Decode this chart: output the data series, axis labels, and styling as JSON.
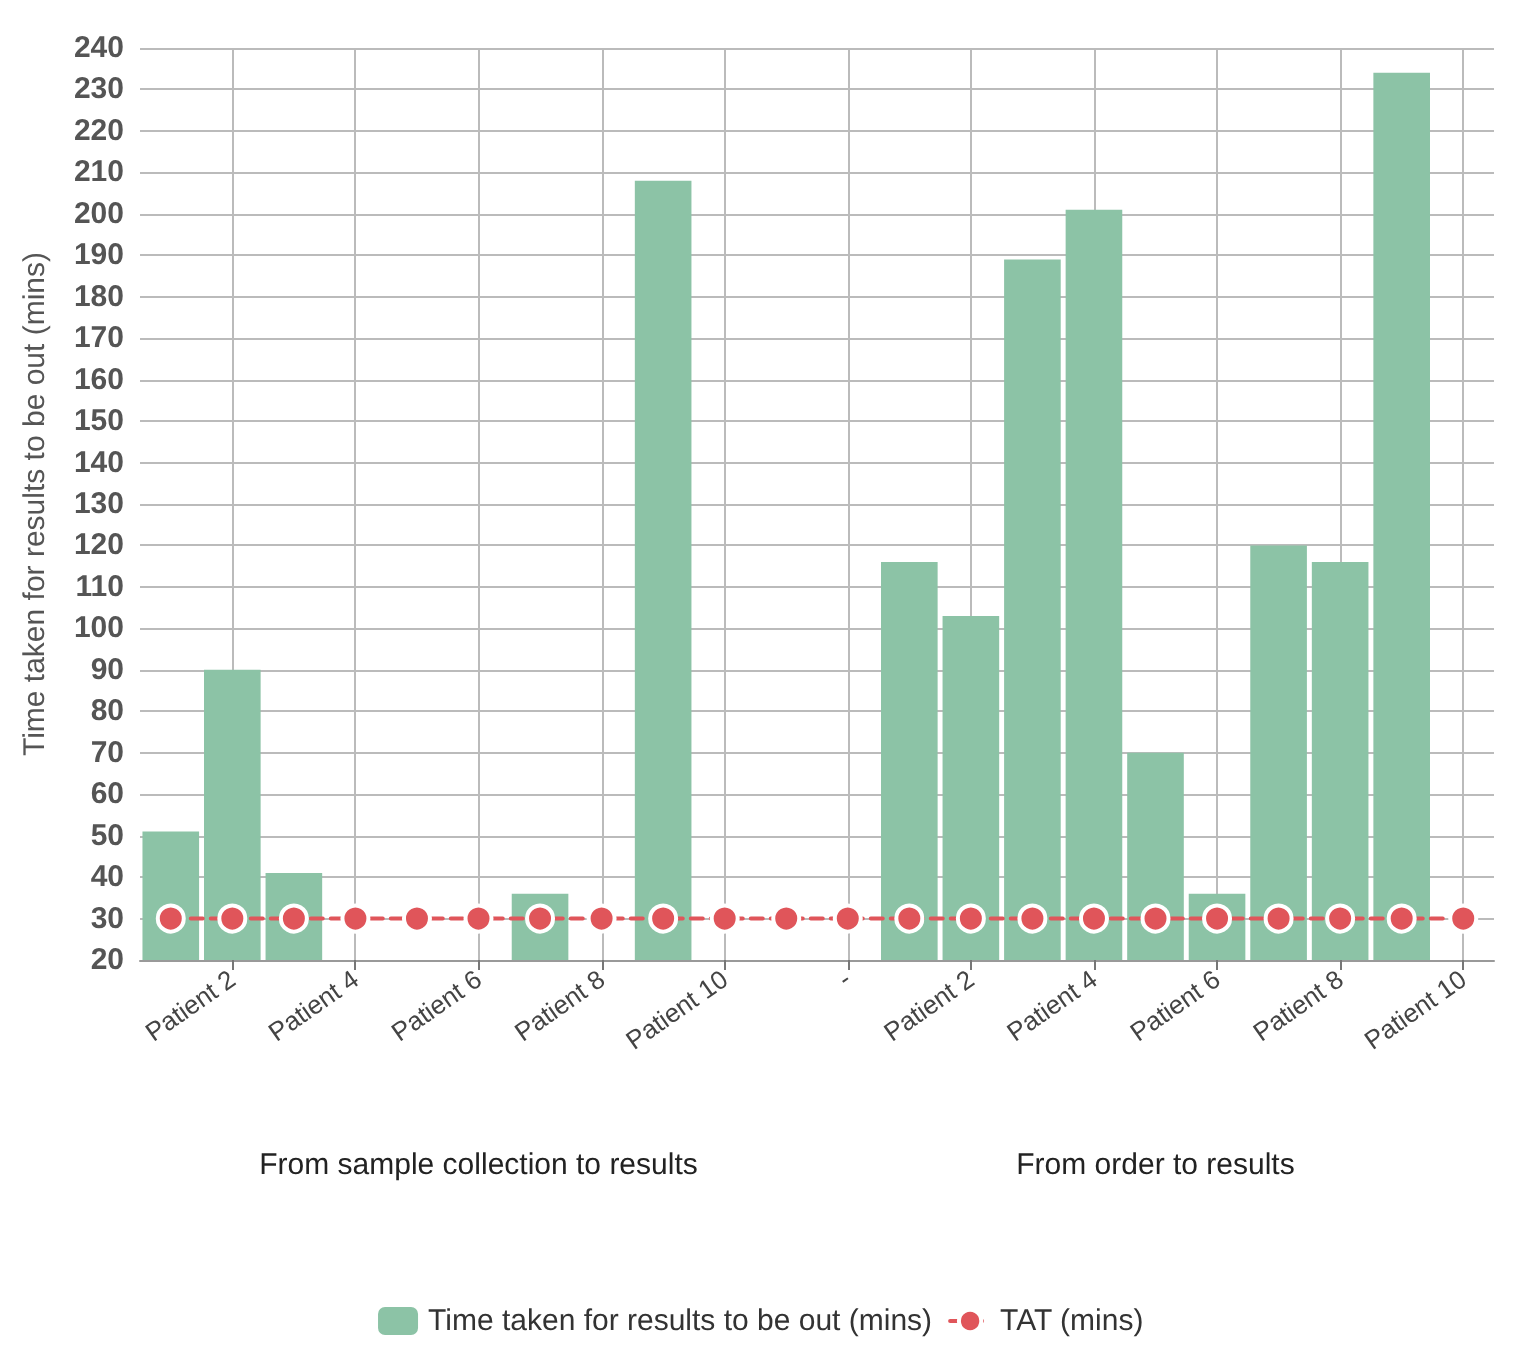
{
  "chart_data": {
    "type": "bar",
    "ylabel": "Time taken for results to be out (mins)",
    "categories": [
      null,
      "Patient 2",
      null,
      "Patient 4",
      null,
      "Patient 6",
      null,
      "Patient 8",
      null,
      "Patient 10",
      null,
      "-",
      null,
      "Patient 2",
      null,
      "Patient 4",
      null,
      "Patient 6",
      null,
      "Patient 8",
      null,
      "Patient 10"
    ],
    "series": [
      {
        "name": "Time taken for results to be out (mins)",
        "color": "#8cc3a6",
        "values": [
          51,
          90,
          41,
          null,
          null,
          null,
          36,
          null,
          208,
          null,
          null,
          null,
          116,
          103,
          189,
          201,
          70,
          36,
          120,
          116,
          234,
          null
        ]
      },
      {
        "name": "TAT (mins)",
        "type": "line",
        "color": "#e0555a",
        "marker": "circle",
        "line_style": "dashed",
        "values": [
          30,
          30,
          30,
          30,
          30,
          30,
          30,
          30,
          30,
          30,
          30,
          30,
          30,
          30,
          30,
          30,
          30,
          30,
          30,
          30,
          30,
          30
        ]
      }
    ],
    "annotations": [
      "From sample collection to results",
      "From order to results"
    ],
    "ylim": [
      20,
      240
    ],
    "yticks": [
      20,
      30,
      40,
      50,
      60,
      70,
      80,
      90,
      100,
      110,
      120,
      130,
      140,
      150,
      160,
      170,
      180,
      190,
      200,
      210,
      220,
      230,
      240
    ],
    "grid": true,
    "legend": "bottom"
  }
}
